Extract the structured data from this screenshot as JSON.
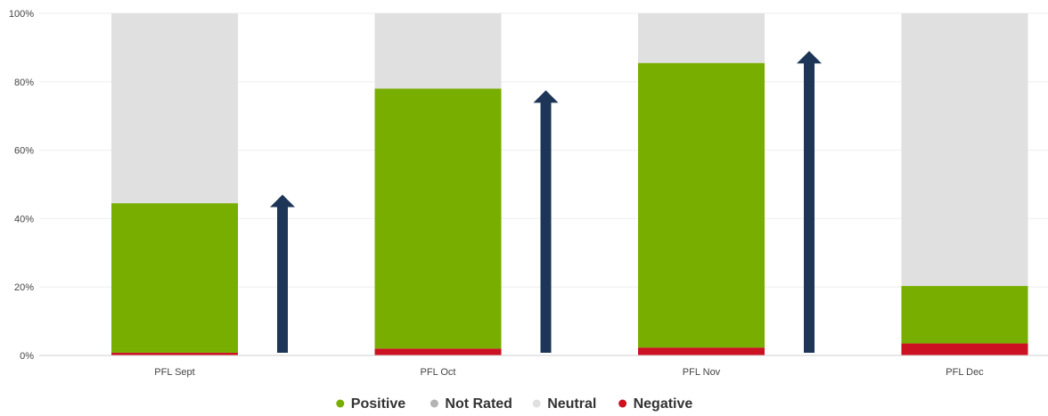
{
  "chart_data": {
    "type": "bar",
    "stacked": true,
    "categories": [
      "PFL Sept",
      "PFL Oct",
      "PFL Nov",
      "PFL Dec"
    ],
    "series": [
      {
        "name": "Negative",
        "color": "#cc1122",
        "values": [
          0.8,
          2,
          2.3,
          3.5
        ]
      },
      {
        "name": "Positive",
        "color": "#78ae00",
        "values": [
          43.7,
          76,
          83.2,
          16.8
        ]
      },
      {
        "name": "Neutral",
        "color": "#e0e0e0",
        "values": [
          55.5,
          22,
          14.5,
          79.7
        ]
      }
    ],
    "legend": {
      "position": "bottom",
      "items": [
        {
          "name": "Positive",
          "color": "#78ae00"
        },
        {
          "name": "Not Rated",
          "color": "#b3b3b3"
        },
        {
          "name": "Neutral",
          "color": "#e0e0e0"
        },
        {
          "name": "Negative",
          "color": "#cc1122"
        }
      ]
    },
    "yticks": [
      "0%",
      "20%",
      "40%",
      "60%",
      "80%",
      "100%"
    ],
    "ylim": [
      0,
      100
    ],
    "grid": true,
    "annotations": {
      "type": "up-arrows",
      "color": "#1d3557",
      "values": [
        47,
        77.5,
        89
      ]
    }
  }
}
